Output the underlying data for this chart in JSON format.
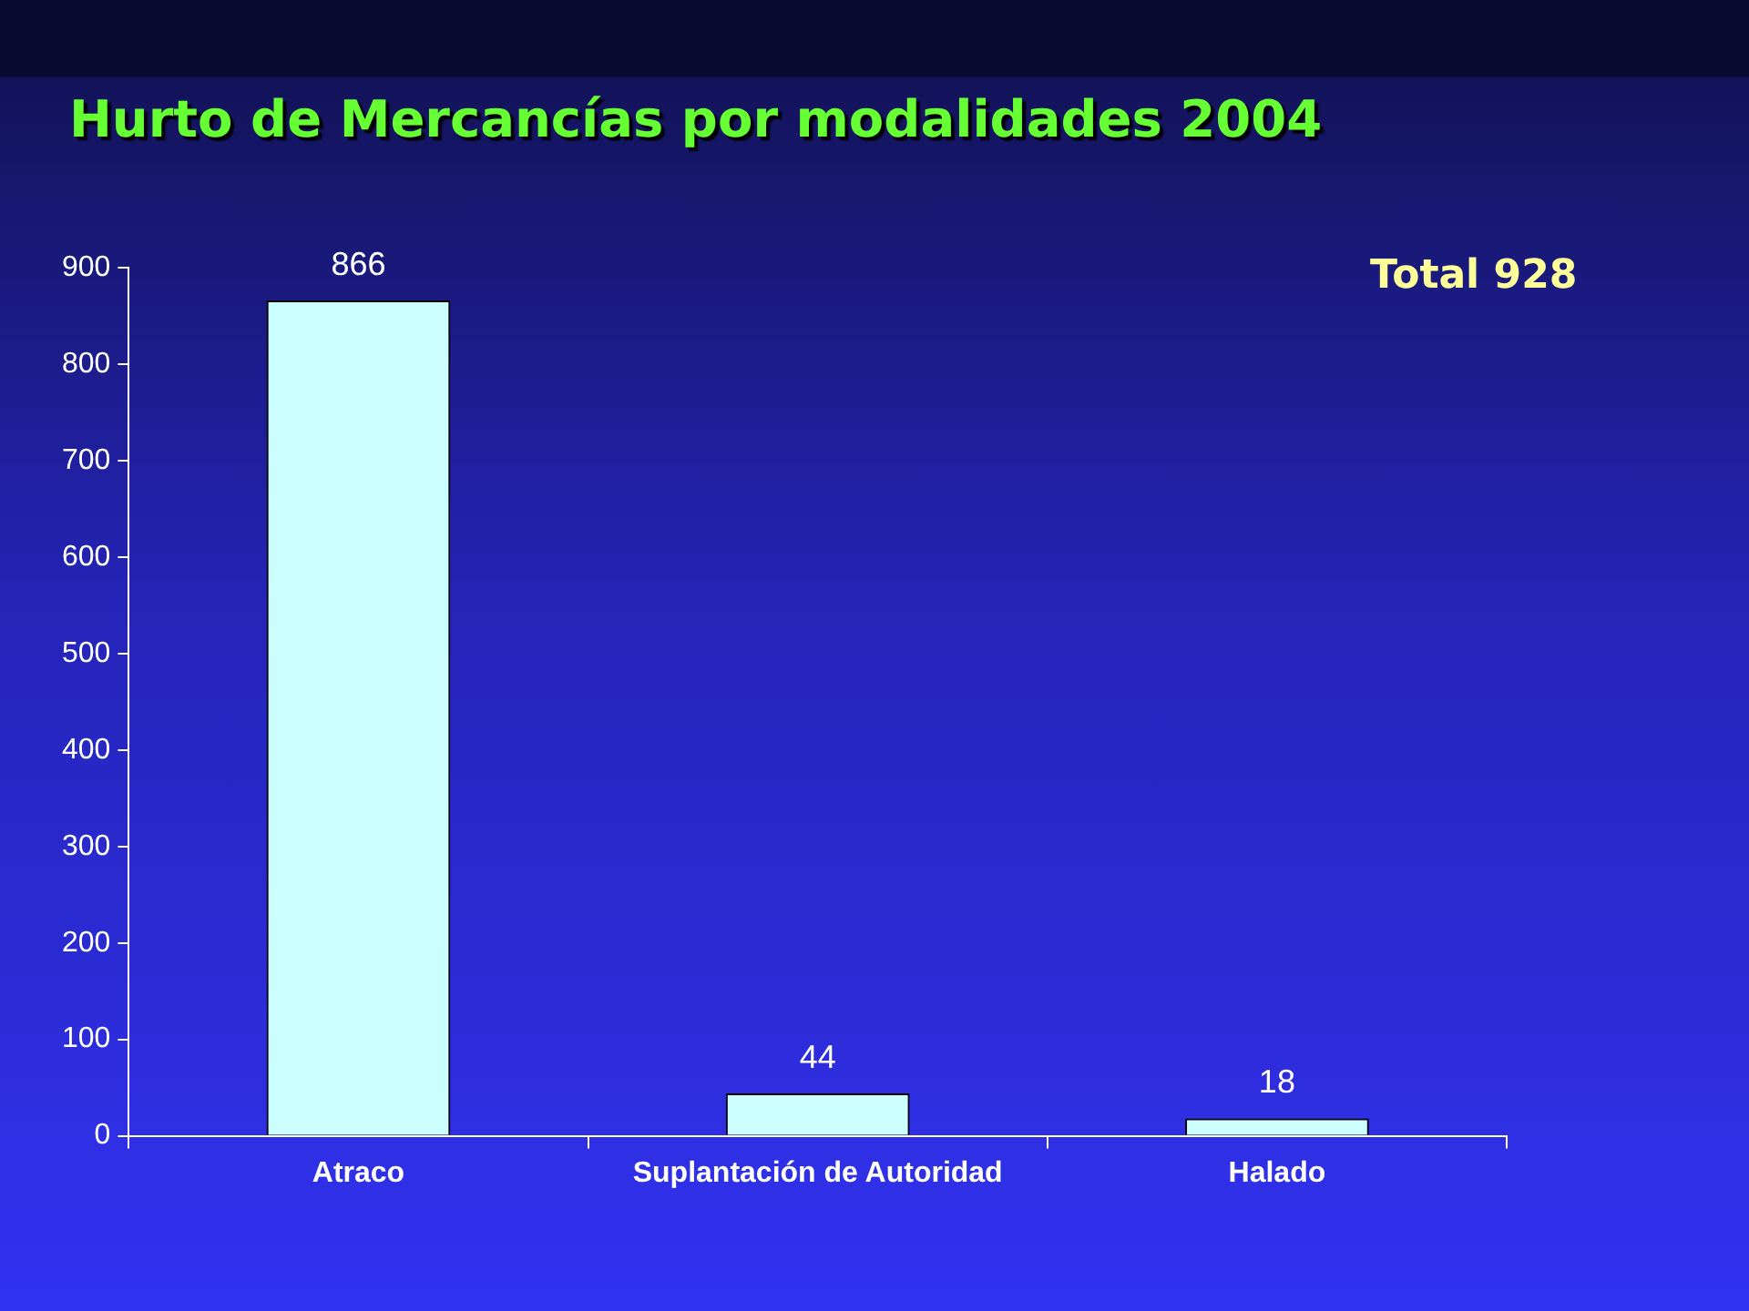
{
  "chart_data": {
    "type": "bar",
    "title": "Hurto de Mercancías por modalidades 2004",
    "categories": [
      "Atraco",
      "Suplantación de Autoridad",
      "Halado"
    ],
    "values": [
      866,
      44,
      18
    ],
    "color": "#ccffff",
    "ylim": [
      0,
      900
    ],
    "yticks": [
      0,
      100,
      200,
      300,
      400,
      500,
      600,
      700,
      800,
      900
    ],
    "grid": false,
    "data_labels": true,
    "annotations": [
      "Total 928"
    ]
  }
}
